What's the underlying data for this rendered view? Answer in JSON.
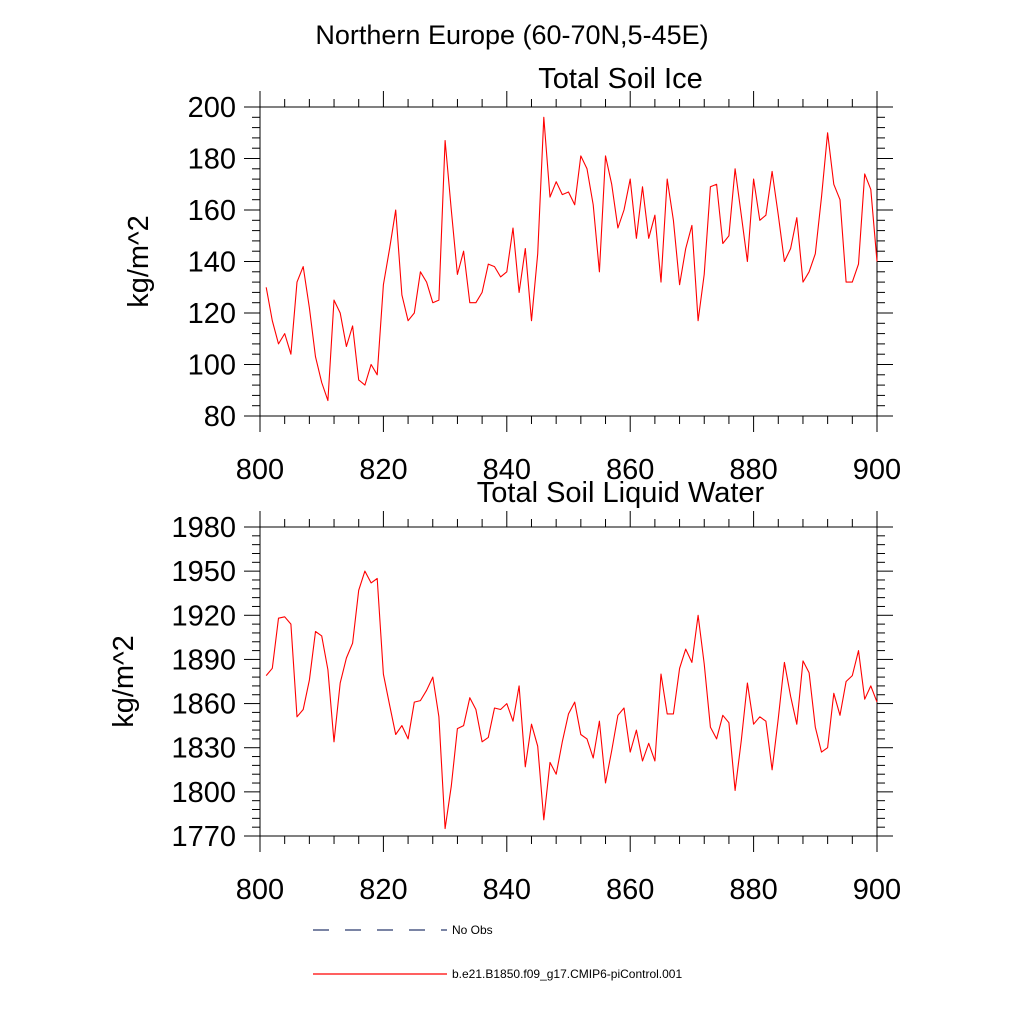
{
  "figure": {
    "suptitle": "Northern Europe (60-70N,5-45E)"
  },
  "chart_data": [
    {
      "type": "line",
      "title": "Total Soil Ice",
      "xlabel": "",
      "ylabel": "kg/m^2",
      "xlim": [
        800,
        900
      ],
      "ylim": [
        80,
        200
      ],
      "xticks": [
        800,
        820,
        840,
        860,
        880,
        900
      ],
      "xtick_labels": [
        "800",
        "820",
        "840",
        "860",
        "880",
        "900"
      ],
      "yticks": [
        80,
        100,
        120,
        140,
        160,
        180,
        200
      ],
      "ytick_labels": [
        "80",
        "100",
        "120",
        "140",
        "160",
        "180",
        "200"
      ],
      "x_start": 801,
      "series": [
        {
          "name": "b.e21.B1850.f09_g17.CMIP6-piControl.001",
          "color": "#ff0000",
          "values": [
            130,
            117,
            108,
            112,
            104,
            132,
            138,
            122,
            103,
            93,
            86,
            125,
            120,
            107,
            115,
            94,
            92,
            100,
            96,
            131,
            145,
            160,
            127,
            117,
            120,
            136,
            132,
            124,
            125,
            187,
            160,
            135,
            144,
            124,
            124,
            128,
            139,
            138,
            134,
            136,
            153,
            128,
            145,
            117,
            143,
            196,
            165,
            171,
            166,
            167,
            162,
            181,
            176,
            162,
            136,
            181,
            170,
            153,
            160,
            172,
            149,
            169,
            149,
            158,
            132,
            172,
            156,
            131,
            145,
            154,
            117,
            135,
            169,
            170,
            147,
            150,
            176,
            158,
            140,
            172,
            156,
            158,
            175,
            158,
            140,
            145,
            157,
            132,
            136,
            143,
            165,
            190,
            170,
            164,
            132,
            132,
            139,
            174,
            168,
            140
          ]
        }
      ]
    },
    {
      "type": "line",
      "title": "Total Soil Liquid Water",
      "xlabel": "",
      "ylabel": "kg/m^2",
      "xlim": [
        800,
        900
      ],
      "ylim": [
        1770,
        1980
      ],
      "xticks": [
        800,
        820,
        840,
        860,
        880,
        900
      ],
      "xtick_labels": [
        "800",
        "820",
        "840",
        "860",
        "880",
        "900"
      ],
      "yticks": [
        1770,
        1800,
        1830,
        1860,
        1890,
        1920,
        1950,
        1980
      ],
      "ytick_labels": [
        "1770",
        "1800",
        "1830",
        "1860",
        "1890",
        "1920",
        "1950",
        "1980"
      ],
      "x_start": 801,
      "series": [
        {
          "name": "b.e21.B1850.f09_g17.CMIP6-piControl.001",
          "color": "#ff0000",
          "values": [
            1879,
            1884,
            1918,
            1919,
            1914,
            1851,
            1856,
            1876,
            1909,
            1906,
            1883,
            1834,
            1874,
            1891,
            1901,
            1937,
            1950,
            1942,
            1945,
            1880,
            1859,
            1839,
            1845,
            1836,
            1861,
            1862,
            1869,
            1878,
            1851,
            1775,
            1804,
            1843,
            1845,
            1864,
            1856,
            1834,
            1837,
            1857,
            1856,
            1860,
            1848,
            1872,
            1817,
            1846,
            1831,
            1781,
            1820,
            1812,
            1834,
            1853,
            1861,
            1839,
            1836,
            1823,
            1848,
            1806,
            1828,
            1852,
            1857,
            1827,
            1842,
            1821,
            1833,
            1821,
            1880,
            1853,
            1853,
            1884,
            1897,
            1888,
            1920,
            1887,
            1844,
            1836,
            1852,
            1847,
            1801,
            1835,
            1874,
            1846,
            1851,
            1848,
            1815,
            1850,
            1888,
            1865,
            1846,
            1889,
            1881,
            1844,
            1827,
            1830,
            1867,
            1852,
            1875,
            1879,
            1896,
            1863,
            1872,
            1861
          ]
        }
      ]
    }
  ],
  "legend": {
    "items": [
      {
        "label": "No Obs",
        "color": "#2a3a6e",
        "style": "dashed"
      },
      {
        "label": "b.e21.B1850.f09_g17.CMIP6-piControl.001",
        "color": "#ff0000",
        "style": "solid"
      }
    ]
  }
}
